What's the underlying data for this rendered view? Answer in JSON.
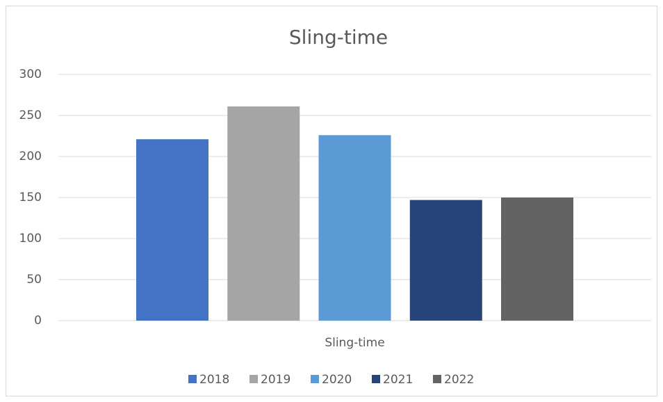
{
  "chart_data": {
    "type": "bar",
    "title": "Sling-time",
    "categories": [
      "Sling-time"
    ],
    "series": [
      {
        "name": "2018",
        "color": "#4472c4",
        "values": [
          221
        ]
      },
      {
        "name": "2019",
        "color": "#a5a5a5",
        "values": [
          261
        ]
      },
      {
        "name": "2020",
        "color": "#5b9bd5",
        "values": [
          226
        ]
      },
      {
        "name": "2021",
        "color": "#264478",
        "values": [
          147
        ]
      },
      {
        "name": "2022",
        "color": "#636363",
        "values": [
          150
        ]
      }
    ],
    "ylim": [
      0,
      300
    ],
    "yticks": [
      0,
      50,
      100,
      150,
      200,
      250,
      300
    ],
    "grid": true,
    "legend": "bottom"
  }
}
